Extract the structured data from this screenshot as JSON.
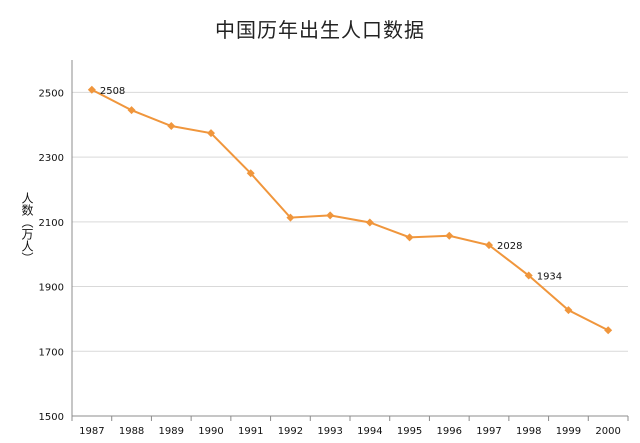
{
  "chart_data": {
    "type": "line",
    "title": "中国历年出生人口数据",
    "xlabel": "",
    "ylabel": "人数（万人）",
    "ylim": [
      1500,
      2600
    ],
    "yticks": [
      1500,
      1700,
      1900,
      2100,
      2300,
      2500
    ],
    "grid": true,
    "legend": "none",
    "x": [
      "1987",
      "1988",
      "1989",
      "1990",
      "1991",
      "1992",
      "1993",
      "1994",
      "1995",
      "1996",
      "1997",
      "1998",
      "1999",
      "2000"
    ],
    "series": [
      {
        "values": [
          2508,
          2445,
          2396,
          2374,
          2250,
          2113,
          2120,
          2098,
          2052,
          2057,
          2028,
          1934,
          1827,
          1765
        ],
        "color": "#F0963C"
      }
    ],
    "data_labels": [
      {
        "x": "1987",
        "text": "2508"
      },
      {
        "x": "1997",
        "text": "2028"
      },
      {
        "x": "1998",
        "text": "1934"
      }
    ]
  }
}
